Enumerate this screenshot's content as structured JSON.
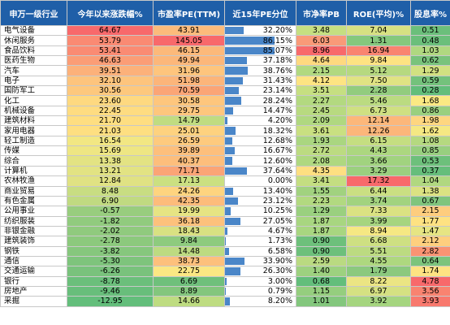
{
  "headers": {
    "industry": "申万一级行业",
    "ytd": "今年以来涨跌幅%",
    "pe": "市盈率PE(TTM)",
    "pct15": "近15年PE分位",
    "pb": "市净率PB",
    "roe": "ROE(平均)%",
    "div": "股息率%"
  },
  "rows": [
    {
      "name": "电气设备",
      "ytd": "64.67",
      "pe": "43.91",
      "pct": "32.20%",
      "pb": "3.48",
      "roe": "7.04",
      "div": "0.51",
      "ytd_c": "#f8696b",
      "pe_c": "#fcbb7b",
      "pb_c": "#c5df81",
      "roe_c": "#d7e182",
      "div_c": "#6bbf7b",
      "pct_v": 32.2
    },
    {
      "name": "休闲服务",
      "ytd": "53.79",
      "pe": "145.05",
      "pct": "86.15%",
      "pb": "6.03",
      "roe": "1.31",
      "div": "0.48",
      "ytd_c": "#fa8a73",
      "pe_c": "#f8696b",
      "pb_c": "#f99a78",
      "roe_c": "#85c87d",
      "div_c": "#6bbf7b",
      "pct_v": 86.15
    },
    {
      "name": "食品饮料",
      "ytd": "53.41",
      "pe": "46.15",
      "pct": "85.07%",
      "pb": "8.96",
      "roe": "16.94",
      "div": "1.03",
      "ytd_c": "#fa8b73",
      "pe_c": "#fcb97a",
      "pb_c": "#f8696b",
      "roe_c": "#f98470",
      "div_c": "#b0d880",
      "pct_v": 85.07
    },
    {
      "name": "医药生物",
      "ytd": "46.63",
      "pe": "49.94",
      "pct": "37.18%",
      "pb": "4.64",
      "roe": "9.84",
      "div": "0.62",
      "ytd_c": "#fb9d76",
      "pe_c": "#fcb77a",
      "pb_c": "#fed97f",
      "roe_c": "#fee382",
      "div_c": "#79c37c",
      "pct_v": 37.18
    },
    {
      "name": "汽车",
      "ytd": "39.51",
      "pe": "31.96",
      "pct": "38.76%",
      "pb": "2.15",
      "roe": "5.12",
      "div": "1.29",
      "ytd_c": "#fcb17a",
      "pe_c": "#fec57d",
      "pb_c": "#b1d980",
      "roe_c": "#b6d980",
      "div_c": "#d2e181",
      "pct_v": 38.76
    },
    {
      "name": "电子",
      "ytd": "32.10",
      "pe": "51.98",
      "pct": "31.43%",
      "pb": "4.12",
      "roe": "7.50",
      "div": "0.59",
      "ytd_c": "#fdc47d",
      "pe_c": "#fcb57a",
      "pb_c": "#fee482",
      "roe_c": "#e0e383",
      "div_c": "#74c27c",
      "pct_v": 31.43
    },
    {
      "name": "国防军工",
      "ytd": "30.56",
      "pe": "70.59",
      "pct": "23.14%",
      "pb": "3.51",
      "roe": "2.28",
      "div": "0.28",
      "ytd_c": "#fdc87d",
      "pe_c": "#fba576",
      "pb_c": "#c6df81",
      "roe_c": "#92cc7e",
      "div_c": "#63be7b",
      "pct_v": 23.14
    },
    {
      "name": "化工",
      "ytd": "23.60",
      "pe": "30.58",
      "pct": "28.24%",
      "pb": "2.27",
      "roe": "5.46",
      "div": "1.68",
      "ytd_c": "#fed980",
      "pe_c": "#fec67d",
      "pb_c": "#b3d980",
      "roe_c": "#bbdb81",
      "div_c": "#fbe983",
      "pct_v": 28.24
    },
    {
      "name": "机械设备",
      "ytd": "22.45",
      "pe": "29.75",
      "pct": "14.47%",
      "pb": "2.45",
      "roe": "6.73",
      "div": "0.86",
      "ytd_c": "#fedc81",
      "pe_c": "#fec67d",
      "pb_c": "#b8da80",
      "roe_c": "#cfe082",
      "div_c": "#9ad07f",
      "pct_v": 14.47
    },
    {
      "name": "建筑材料",
      "ytd": "21.70",
      "pe": "14.79",
      "pct": "4.20%",
      "pb": "2.09",
      "roe": "12.14",
      "div": "1.98",
      "ytd_c": "#fede81",
      "pe_c": "#c0dc81",
      "pb_c": "#b0d880",
      "roe_c": "#fcb77a",
      "div_c": "#fed680",
      "pct_v": 4.2
    },
    {
      "name": "家用电器",
      "ytd": "21.03",
      "pe": "25.01",
      "pct": "18.32%",
      "pb": "3.61",
      "roe": "12.26",
      "div": "1.62",
      "ytd_c": "#fedf81",
      "pe_c": "#fed27f",
      "pb_c": "#c9e081",
      "roe_c": "#fcb67a",
      "div_c": "#f5e883",
      "pct_v": 18.32
    },
    {
      "name": "轻工制造",
      "ytd": "16.54",
      "pe": "26.59",
      "pct": "12.68%",
      "pb": "1.93",
      "roe": "6.15",
      "div": "1.08",
      "ytd_c": "#f2e783",
      "pe_c": "#feca7e",
      "pb_c": "#aad680",
      "roe_c": "#c5de81",
      "div_c": "#b5d980",
      "pct_v": 12.68
    },
    {
      "name": "传媒",
      "ytd": "15.69",
      "pe": "39.89",
      "pct": "16.67%",
      "pb": "2.72",
      "roe": "4.43",
      "div": "0.85",
      "ytd_c": "#eee683",
      "pe_c": "#fdbf7c",
      "pb_c": "#bcdb81",
      "roe_c": "#acd77f",
      "div_c": "#98cf7f",
      "pct_v": 16.67
    },
    {
      "name": "综合",
      "ytd": "13.38",
      "pe": "40.37",
      "pct": "12.60%",
      "pb": "2.08",
      "roe": "3.66",
      "div": "0.53",
      "ytd_c": "#e3e383",
      "pe_c": "#fdbe7c",
      "pb_c": "#afd880",
      "roe_c": "#a1d37f",
      "div_c": "#6dc07b",
      "pct_v": 12.6
    },
    {
      "name": "计算机",
      "ytd": "13.21",
      "pe": "71.71",
      "pct": "37.64%",
      "pb": "4.35",
      "roe": "3.29",
      "div": "0.37",
      "ytd_c": "#e2e383",
      "pe_c": "#fba476",
      "pb_c": "#fedf81",
      "roe_c": "#9bd07f",
      "div_c": "#66be7b",
      "pct_v": 37.64
    },
    {
      "name": "农林牧渔",
      "ytd": "12.84",
      "pe": "17.13",
      "pct": "0.00%",
      "pb": "3.41",
      "roe": "17.32",
      "div": "1.04",
      "ytd_c": "#e0e283",
      "pe_c": "#cbe081",
      "pb_c": "#c4de81",
      "roe_c": "#f8696b",
      "div_c": "#b1d880",
      "pct_v": 0
    },
    {
      "name": "商业贸易",
      "ytd": "8.48",
      "pe": "24.26",
      "pct": "13.40%",
      "pb": "1.55",
      "roe": "6.44",
      "div": "1.38",
      "ytd_c": "#c8dd82",
      "pe_c": "#fed47f",
      "pb_c": "#a1d27f",
      "roe_c": "#cadf82",
      "div_c": "#dce282",
      "pct_v": 13.4
    },
    {
      "name": "有色金属",
      "ytd": "6.90",
      "pe": "42.35",
      "pct": "23.12%",
      "pb": "2.23",
      "roe": "3.74",
      "div": "0.67",
      "ytd_c": "#c0da81",
      "pe_c": "#fdbc7b",
      "pb_c": "#b2d980",
      "roe_c": "#a2d37f",
      "div_c": "#80c57d",
      "pct_v": 23.12
    },
    {
      "name": "公用事业",
      "ytd": "-0.57",
      "pe": "19.99",
      "pct": "10.25%",
      "pb": "1.29",
      "roe": "7.33",
      "div": "2.15",
      "ytd_c": "#98cd7e",
      "pe_c": "#e6e483",
      "pb_c": "#9ad07f",
      "roe_c": "#dbe282",
      "div_c": "#fecd7e",
      "pct_v": 10.25
    },
    {
      "name": "纺织服装",
      "ytd": "-1.82",
      "pe": "36.18",
      "pct": "27.05%",
      "pb": "1.87",
      "roe": "3.99",
      "div": "1.77",
      "ytd_c": "#91cb7e",
      "pe_c": "#fdc17c",
      "pb_c": "#a8d680",
      "roe_c": "#a6d57f",
      "div_c": "#fee282",
      "pct_v": 27.05
    },
    {
      "name": "非银金融",
      "ytd": "-2.02",
      "pe": "18.43",
      "pct": "4.67%",
      "pb": "1.87",
      "roe": "8.94",
      "div": "1.47",
      "ytd_c": "#90ca7e",
      "pe_c": "#d9e182",
      "pb_c": "#a8d680",
      "roe_c": "#f6e883",
      "div_c": "#e6e583",
      "pct_v": 4.67
    },
    {
      "name": "建筑装饰",
      "ytd": "-2.78",
      "pe": "9.84",
      "pct": "1.73%",
      "pb": "0.90",
      "roe": "6.68",
      "div": "2.12",
      "ytd_c": "#8cc97d",
      "pe_c": "#8ecb7e",
      "pb_c": "#6dc07b",
      "roe_c": "#cee082",
      "div_c": "#fecf7e",
      "pct_v": 1.73
    },
    {
      "name": "钢铁",
      "ytd": "-3.82",
      "pe": "14.48",
      "pct": "6.58%",
      "pb": "0.90",
      "roe": "5.51",
      "div": "2.82",
      "ytd_c": "#86c77d",
      "pe_c": "#bddb81",
      "pb_c": "#6dc07b",
      "roe_c": "#bcdb81",
      "div_c": "#fa9373",
      "pct_v": 6.58
    },
    {
      "name": "通信",
      "ytd": "-5.30",
      "pe": "38.73",
      "pct": "33.90%",
      "pb": "2.59",
      "roe": "4.55",
      "div": "0.64",
      "ytd_c": "#7ec47c",
      "pe_c": "#fdc07c",
      "pb_c": "#bada81",
      "roe_c": "#aed87f",
      "div_c": "#7cc47c",
      "pct_v": 33.9
    },
    {
      "name": "交通运输",
      "ytd": "-6.26",
      "pe": "22.75",
      "pct": "26.30%",
      "pb": "1.40",
      "roe": "1.79",
      "div": "1.74",
      "ytd_c": "#79c27c",
      "pe_c": "#fbe783",
      "pb_c": "#9dd17f",
      "roe_c": "#8bc97e",
      "div_c": "#fee382",
      "pct_v": 26.3
    },
    {
      "name": "银行",
      "ytd": "-8.78",
      "pe": "6.69",
      "pct": "3.00%",
      "pb": "0.68",
      "roe": "8.22",
      "div": "4.78",
      "ytd_c": "#6bbf7b",
      "pe_c": "#6fc07b",
      "pb_c": "#63be7b",
      "roe_c": "#ebe583",
      "div_c": "#f8696b",
      "pct_v": 3.0
    },
    {
      "name": "房地产",
      "ytd": "-9.46",
      "pe": "8.89",
      "pct": "0.79%",
      "pb": "1.15",
      "roe": "6.97",
      "div": "3.56",
      "ytd_c": "#68be7b",
      "pe_c": "#83c67d",
      "pb_c": "#95ce7e",
      "roe_c": "#d5e182",
      "div_c": "#f98370",
      "pct_v": 0.79
    },
    {
      "name": "采掘",
      "ytd": "-12.95",
      "pe": "14.66",
      "pct": "8.20%",
      "pb": "1.01",
      "roe": "3.92",
      "div": "3.93",
      "ytd_c": "#63be7b",
      "pe_c": "#bedc81",
      "pb_c": "#83c77d",
      "roe_c": "#a5d57f",
      "div_c": "#f8796e",
      "pct_v": 8.2
    }
  ]
}
